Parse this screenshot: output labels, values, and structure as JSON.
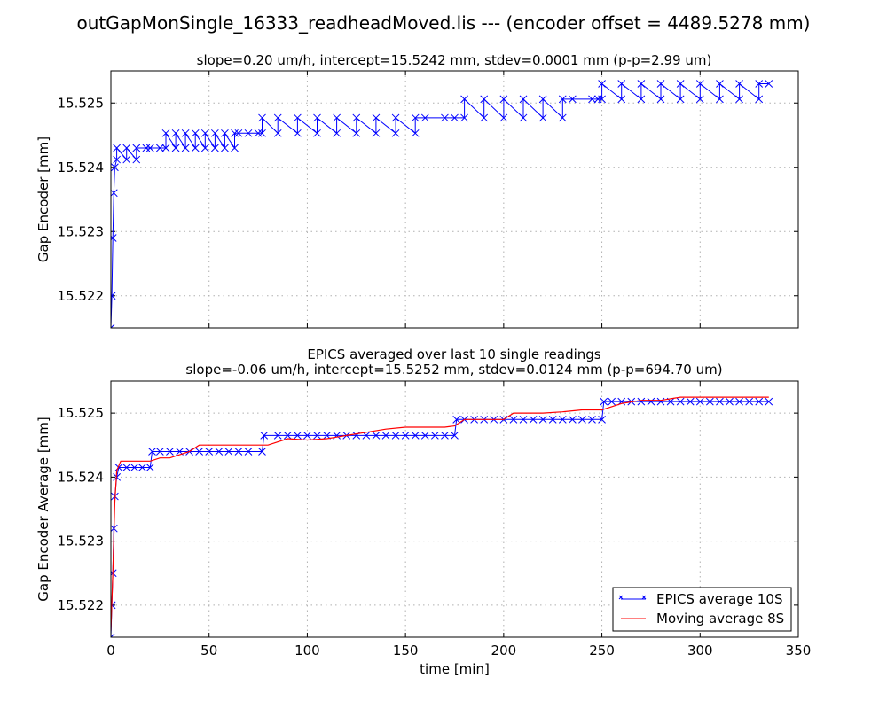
{
  "title": "outGapMonSingle_16333_readheadMoved.lis --- (encoder offset = 4489.5278 mm)",
  "chart_data": [
    {
      "type": "line",
      "title": "slope=0.20 um/h, intercept=15.5242 mm, stdev=0.0001 mm (p-p=2.99 um)",
      "xlabel": "",
      "ylabel": "Gap Encoder [mm]",
      "xlim": [
        0,
        350
      ],
      "ylim": [
        15.5215,
        15.5255
      ],
      "xticks": [
        0,
        50,
        100,
        150,
        200,
        250,
        300,
        350
      ],
      "yticks": [
        "15.522",
        "15.523",
        "15.524",
        "15.525"
      ],
      "show_xtick_labels": false,
      "grid": true,
      "series": [
        {
          "color": "#0000ff",
          "marker": "x",
          "x": [
            0,
            0.5,
            1,
            1.5,
            2,
            3,
            3,
            8,
            8,
            13,
            13,
            18,
            20,
            25,
            28,
            28,
            33,
            33,
            38,
            38,
            43,
            43,
            48,
            48,
            53,
            53,
            58,
            58,
            63,
            63,
            65,
            70,
            75,
            77,
            77,
            85,
            85,
            95,
            95,
            105,
            105,
            115,
            115,
            125,
            125,
            135,
            135,
            145,
            145,
            155,
            155,
            160,
            170,
            175,
            180,
            180,
            190,
            190,
            200,
            200,
            210,
            210,
            220,
            220,
            230,
            230,
            235,
            245,
            248,
            250,
            250,
            260,
            260,
            270,
            270,
            280,
            280,
            290,
            290,
            300,
            300,
            310,
            310,
            320,
            320,
            330,
            330,
            335
          ],
          "y": [
            15.5215,
            15.522,
            15.5229,
            15.5236,
            15.524,
            15.52412,
            15.5243,
            15.52412,
            15.5243,
            15.52412,
            15.5243,
            15.5243,
            15.5243,
            15.5243,
            15.5243,
            15.52453,
            15.5243,
            15.52453,
            15.5243,
            15.52453,
            15.5243,
            15.52453,
            15.5243,
            15.52453,
            15.5243,
            15.52453,
            15.5243,
            15.52453,
            15.5243,
            15.52453,
            15.52453,
            15.52453,
            15.52453,
            15.52453,
            15.52477,
            15.52453,
            15.52477,
            15.52453,
            15.52477,
            15.52453,
            15.52477,
            15.52453,
            15.52477,
            15.52453,
            15.52477,
            15.52453,
            15.52477,
            15.52453,
            15.52477,
            15.52453,
            15.52477,
            15.52477,
            15.52477,
            15.52477,
            15.52477,
            15.52506,
            15.52477,
            15.52506,
            15.52477,
            15.52506,
            15.52477,
            15.52506,
            15.52477,
            15.52506,
            15.52477,
            15.52506,
            15.52506,
            15.52506,
            15.52506,
            15.52506,
            15.5253,
            15.52506,
            15.5253,
            15.52506,
            15.5253,
            15.52506,
            15.5253,
            15.52506,
            15.5253,
            15.52506,
            15.5253,
            15.52506,
            15.5253,
            15.52506,
            15.5253,
            15.52506,
            15.5253,
            15.5253
          ]
        }
      ]
    },
    {
      "type": "line",
      "title": "EPICS averaged over last 10 single readings",
      "subtitle": "slope=-0.06 um/h, intercept=15.5252 mm, stdev=0.0124 mm (p-p=694.70 um)",
      "xlabel": "time [min]",
      "ylabel": "Gap Encoder Average [mm]",
      "xlim": [
        0,
        350
      ],
      "ylim": [
        15.5215,
        15.5255
      ],
      "xticks": [
        0,
        50,
        100,
        150,
        200,
        250,
        300,
        350
      ],
      "yticks": [
        "15.522",
        "15.523",
        "15.524",
        "15.525"
      ],
      "show_xtick_labels": true,
      "grid": true,
      "legend": "bottom-right",
      "series": [
        {
          "name": "EPICS average 10S",
          "color": "#0000ff",
          "marker": "x",
          "x": [
            0,
            0.5,
            1,
            1.5,
            2,
            3,
            4,
            8,
            12,
            16,
            20,
            21,
            25,
            30,
            35,
            40,
            45,
            50,
            55,
            60,
            65,
            70,
            77,
            78,
            85,
            90,
            95,
            100,
            105,
            110,
            115,
            120,
            125,
            130,
            135,
            140,
            145,
            150,
            155,
            160,
            165,
            170,
            175,
            176,
            180,
            185,
            190,
            195,
            200,
            205,
            210,
            215,
            220,
            225,
            230,
            235,
            240,
            245,
            250,
            251,
            255,
            260,
            265,
            270,
            275,
            280,
            285,
            290,
            295,
            300,
            305,
            310,
            315,
            320,
            325,
            330,
            335
          ],
          "y": [
            15.5215,
            15.522,
            15.5225,
            15.5232,
            15.5237,
            15.524,
            15.52415,
            15.52415,
            15.52415,
            15.52415,
            15.52415,
            15.5244,
            15.5244,
            15.5244,
            15.5244,
            15.5244,
            15.5244,
            15.5244,
            15.5244,
            15.5244,
            15.5244,
            15.5244,
            15.5244,
            15.52465,
            15.52465,
            15.52465,
            15.52465,
            15.52465,
            15.52465,
            15.52465,
            15.52465,
            15.52465,
            15.52465,
            15.52465,
            15.52465,
            15.52465,
            15.52465,
            15.52465,
            15.52465,
            15.52465,
            15.52465,
            15.52465,
            15.52465,
            15.5249,
            15.5249,
            15.5249,
            15.5249,
            15.5249,
            15.5249,
            15.5249,
            15.5249,
            15.5249,
            15.5249,
            15.5249,
            15.5249,
            15.5249,
            15.5249,
            15.5249,
            15.5249,
            15.52518,
            15.52518,
            15.52518,
            15.52518,
            15.52518,
            15.52518,
            15.52518,
            15.52518,
            15.52518,
            15.52518,
            15.52518,
            15.52518,
            15.52518,
            15.52518,
            15.52518,
            15.52518,
            15.52518,
            15.52518
          ]
        },
        {
          "name": "Moving average 8S",
          "color": "#ff0000",
          "marker": "",
          "x": [
            0,
            1,
            2,
            3,
            5,
            10,
            20,
            25,
            30,
            40,
            45,
            50,
            60,
            70,
            80,
            90,
            100,
            110,
            120,
            130,
            140,
            150,
            160,
            170,
            175,
            180,
            190,
            200,
            205,
            210,
            220,
            230,
            240,
            250,
            255,
            260,
            270,
            280,
            290,
            300,
            310,
            320,
            330,
            335
          ],
          "y": [
            15.5216,
            15.5225,
            15.5236,
            15.5241,
            15.52425,
            15.52425,
            15.52425,
            15.5243,
            15.5243,
            15.5244,
            15.5245,
            15.5245,
            15.5245,
            15.5245,
            15.5245,
            15.5246,
            15.52458,
            15.5246,
            15.52465,
            15.5247,
            15.52475,
            15.52478,
            15.52478,
            15.52478,
            15.5248,
            15.5249,
            15.5249,
            15.5249,
            15.525,
            15.525,
            15.525,
            15.52502,
            15.52505,
            15.52505,
            15.5251,
            15.52515,
            15.5252,
            15.5252,
            15.52525,
            15.52525,
            15.52525,
            15.52525,
            15.52525,
            15.52525
          ]
        }
      ]
    }
  ]
}
